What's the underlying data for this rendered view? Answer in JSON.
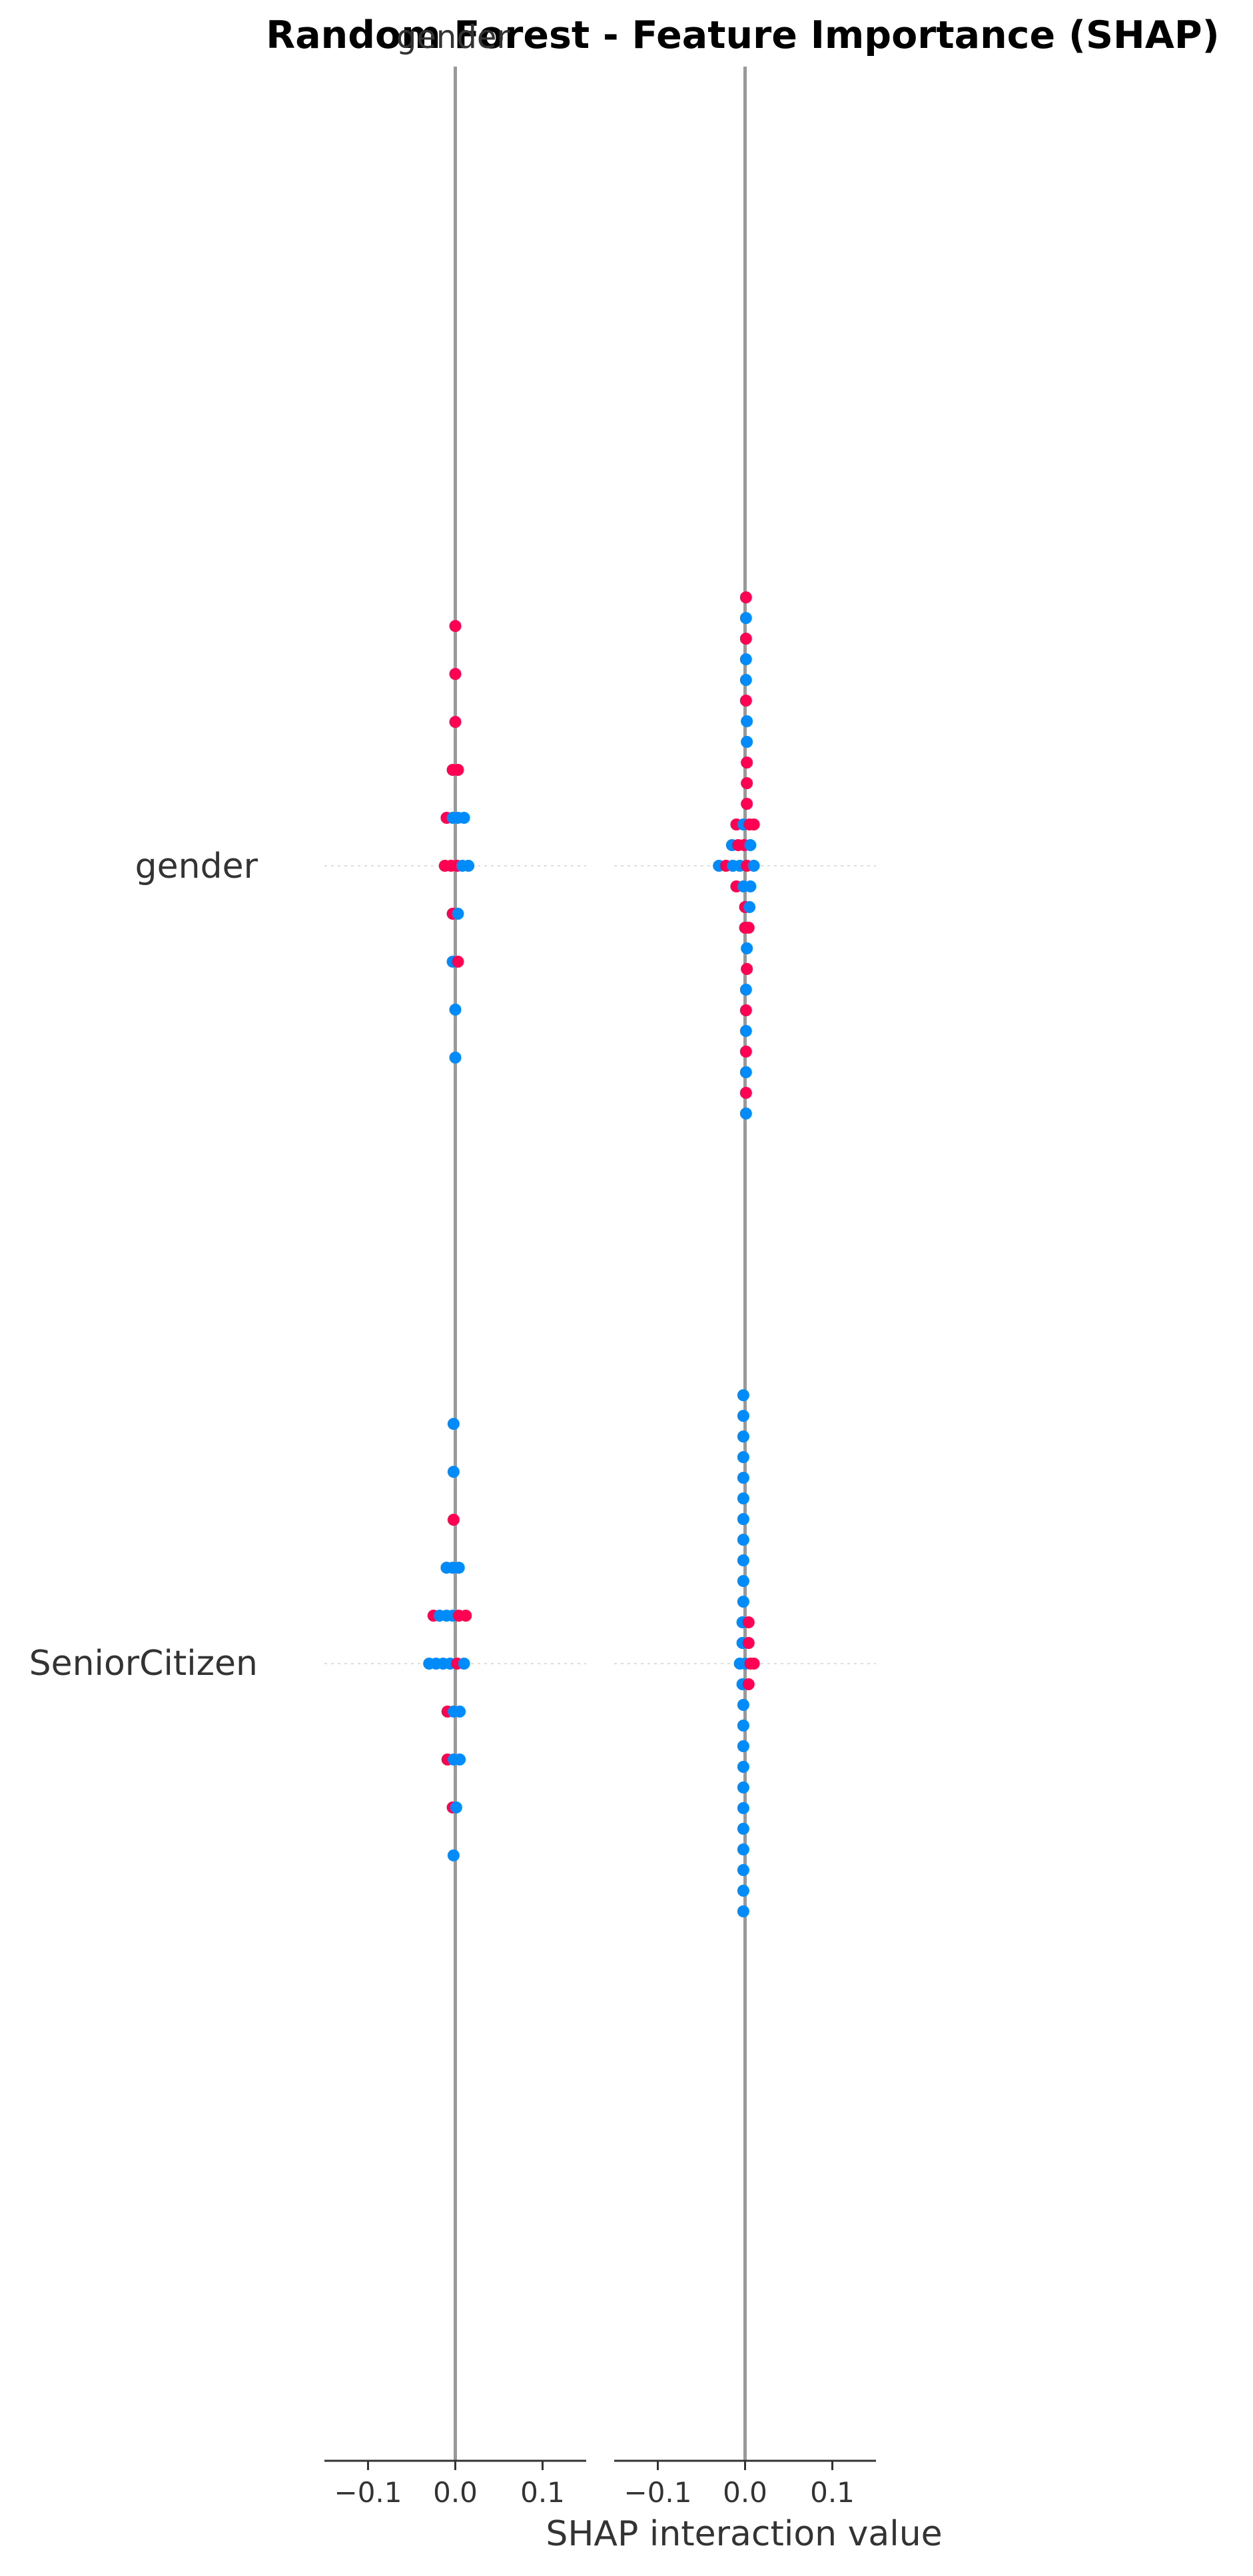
{
  "chart_data": {
    "type": "scatter",
    "title": "Random Forest - Feature Importance (SHAP)",
    "panel_titles": [
      "gender",
      ""
    ],
    "xlabel": "SHAP interaction value",
    "xlim": [
      -0.15,
      0.15
    ],
    "xticks": [
      -0.1,
      0.0,
      0.1
    ],
    "xtick_labels": [
      "−0.1",
      "0.0",
      "0.1"
    ],
    "features": [
      "gender",
      "SeniorCitizen"
    ],
    "colors": {
      "high": "#ff0052",
      "low": "#008bfb",
      "baseline": "#999999",
      "row_grid": "#dddddd"
    },
    "panels": [
      {
        "name": "gender",
        "rows": [
          {
            "feature": "gender",
            "points": [
              {
                "x": 0.0,
                "y": 5,
                "c": "high"
              },
              {
                "x": 0.0,
                "y": 4,
                "c": "high"
              },
              {
                "x": 0.0,
                "y": 3,
                "c": "high"
              },
              {
                "x": -0.003,
                "y": 2,
                "c": "high"
              },
              {
                "x": 0.003,
                "y": 2,
                "c": "high"
              },
              {
                "x": -0.01,
                "y": 1,
                "c": "high"
              },
              {
                "x": -0.003,
                "y": 1,
                "c": "low"
              },
              {
                "x": 0.003,
                "y": 1,
                "c": "low"
              },
              {
                "x": 0.01,
                "y": 1,
                "c": "low"
              },
              {
                "x": -0.012,
                "y": 0,
                "c": "high"
              },
              {
                "x": -0.005,
                "y": 0,
                "c": "high"
              },
              {
                "x": 0.002,
                "y": 0,
                "c": "high"
              },
              {
                "x": 0.008,
                "y": 0,
                "c": "low"
              },
              {
                "x": 0.015,
                "y": 0,
                "c": "low"
              },
              {
                "x": -0.003,
                "y": -1,
                "c": "high"
              },
              {
                "x": 0.003,
                "y": -1,
                "c": "low"
              },
              {
                "x": -0.003,
                "y": -2,
                "c": "low"
              },
              {
                "x": 0.003,
                "y": -2,
                "c": "high"
              },
              {
                "x": 0.0,
                "y": -3,
                "c": "low"
              },
              {
                "x": 0.0,
                "y": -4,
                "c": "low"
              }
            ]
          },
          {
            "feature": "SeniorCitizen",
            "points": [
              {
                "x": -0.002,
                "y": 5,
                "c": "low"
              },
              {
                "x": -0.002,
                "y": 4,
                "c": "low"
              },
              {
                "x": -0.002,
                "y": 3,
                "c": "high"
              },
              {
                "x": -0.01,
                "y": 2,
                "c": "low"
              },
              {
                "x": -0.003,
                "y": 2,
                "c": "low"
              },
              {
                "x": 0.004,
                "y": 2,
                "c": "low"
              },
              {
                "x": -0.025,
                "y": 1,
                "c": "high"
              },
              {
                "x": -0.018,
                "y": 1,
                "c": "low"
              },
              {
                "x": -0.01,
                "y": 1,
                "c": "low"
              },
              {
                "x": -0.003,
                "y": 1,
                "c": "low"
              },
              {
                "x": 0.004,
                "y": 1,
                "c": "high"
              },
              {
                "x": 0.012,
                "y": 1,
                "c": "high"
              },
              {
                "x": -0.03,
                "y": 0,
                "c": "low"
              },
              {
                "x": -0.022,
                "y": 0,
                "c": "low"
              },
              {
                "x": -0.014,
                "y": 0,
                "c": "low"
              },
              {
                "x": -0.006,
                "y": 0,
                "c": "low"
              },
              {
                "x": 0.002,
                "y": 0,
                "c": "high"
              },
              {
                "x": 0.01,
                "y": 0,
                "c": "low"
              },
              {
                "x": -0.009,
                "y": -1,
                "c": "high"
              },
              {
                "x": -0.002,
                "y": -1,
                "c": "low"
              },
              {
                "x": 0.005,
                "y": -1,
                "c": "low"
              },
              {
                "x": -0.009,
                "y": -2,
                "c": "high"
              },
              {
                "x": -0.002,
                "y": -2,
                "c": "low"
              },
              {
                "x": 0.005,
                "y": -2,
                "c": "low"
              },
              {
                "x": -0.003,
                "y": -3,
                "c": "high"
              },
              {
                "x": 0.001,
                "y": -3,
                "c": "low"
              },
              {
                "x": -0.002,
                "y": -4,
                "c": "low"
              }
            ]
          }
        ]
      },
      {
        "name": "",
        "rows": [
          {
            "feature": "gender",
            "points": [
              {
                "x": 0.001,
                "y": 13,
                "c": "high"
              },
              {
                "x": 0.001,
                "y": 12,
                "c": "low"
              },
              {
                "x": 0.001,
                "y": 11,
                "c": "high"
              },
              {
                "x": 0.001,
                "y": 10,
                "c": "low"
              },
              {
                "x": 0.001,
                "y": 9,
                "c": "low"
              },
              {
                "x": 0.001,
                "y": 8,
                "c": "high"
              },
              {
                "x": 0.002,
                "y": 7,
                "c": "low"
              },
              {
                "x": 0.002,
                "y": 6,
                "c": "low"
              },
              {
                "x": 0.002,
                "y": 5,
                "c": "high"
              },
              {
                "x": 0.002,
                "y": 4,
                "c": "high"
              },
              {
                "x": 0.002,
                "y": 3,
                "c": "high"
              },
              {
                "x": -0.01,
                "y": 2,
                "c": "high"
              },
              {
                "x": -0.002,
                "y": 2,
                "c": "low"
              },
              {
                "x": 0.005,
                "y": 2,
                "c": "high"
              },
              {
                "x": 0.01,
                "y": 2,
                "c": "high"
              },
              {
                "x": -0.015,
                "y": 1,
                "c": "low"
              },
              {
                "x": -0.008,
                "y": 1,
                "c": "high"
              },
              {
                "x": -0.001,
                "y": 1,
                "c": "high"
              },
              {
                "x": 0.006,
                "y": 1,
                "c": "low"
              },
              {
                "x": -0.03,
                "y": 0,
                "c": "low"
              },
              {
                "x": -0.022,
                "y": 0,
                "c": "high"
              },
              {
                "x": -0.014,
                "y": 0,
                "c": "low"
              },
              {
                "x": -0.006,
                "y": 0,
                "c": "low"
              },
              {
                "x": 0.002,
                "y": 0,
                "c": "high"
              },
              {
                "x": 0.01,
                "y": 0,
                "c": "low"
              },
              {
                "x": -0.01,
                "y": -1,
                "c": "high"
              },
              {
                "x": -0.002,
                "y": -1,
                "c": "low"
              },
              {
                "x": 0.006,
                "y": -1,
                "c": "low"
              },
              {
                "x": 0.0,
                "y": -2,
                "c": "high"
              },
              {
                "x": 0.005,
                "y": -2,
                "c": "low"
              },
              {
                "x": 0.0,
                "y": -3,
                "c": "high"
              },
              {
                "x": 0.004,
                "y": -3,
                "c": "high"
              },
              {
                "x": 0.002,
                "y": -4,
                "c": "low"
              },
              {
                "x": 0.002,
                "y": -5,
                "c": "high"
              },
              {
                "x": 0.001,
                "y": -6,
                "c": "low"
              },
              {
                "x": 0.001,
                "y": -7,
                "c": "high"
              },
              {
                "x": 0.001,
                "y": -8,
                "c": "low"
              },
              {
                "x": 0.001,
                "y": -9,
                "c": "high"
              },
              {
                "x": 0.001,
                "y": -10,
                "c": "low"
              },
              {
                "x": 0.001,
                "y": -11,
                "c": "high"
              },
              {
                "x": 0.001,
                "y": -12,
                "c": "low"
              }
            ]
          },
          {
            "feature": "SeniorCitizen",
            "points": [
              {
                "x": -0.002,
                "y": 13,
                "c": "low"
              },
              {
                "x": -0.002,
                "y": 12,
                "c": "low"
              },
              {
                "x": -0.002,
                "y": 11,
                "c": "low"
              },
              {
                "x": -0.002,
                "y": 10,
                "c": "low"
              },
              {
                "x": -0.002,
                "y": 9,
                "c": "low"
              },
              {
                "x": -0.002,
                "y": 8,
                "c": "low"
              },
              {
                "x": -0.002,
                "y": 7,
                "c": "low"
              },
              {
                "x": -0.002,
                "y": 6,
                "c": "low"
              },
              {
                "x": -0.002,
                "y": 5,
                "c": "low"
              },
              {
                "x": -0.002,
                "y": 4,
                "c": "low"
              },
              {
                "x": -0.002,
                "y": 3,
                "c": "low"
              },
              {
                "x": -0.003,
                "y": 2,
                "c": "low"
              },
              {
                "x": 0.004,
                "y": 2,
                "c": "high"
              },
              {
                "x": -0.003,
                "y": 1,
                "c": "low"
              },
              {
                "x": 0.004,
                "y": 1,
                "c": "high"
              },
              {
                "x": -0.006,
                "y": 0,
                "c": "low"
              },
              {
                "x": 0.0,
                "y": 0,
                "c": "low"
              },
              {
                "x": 0.006,
                "y": 0,
                "c": "high"
              },
              {
                "x": 0.01,
                "y": 0,
                "c": "high"
              },
              {
                "x": -0.003,
                "y": -1,
                "c": "low"
              },
              {
                "x": 0.004,
                "y": -1,
                "c": "high"
              },
              {
                "x": -0.002,
                "y": -2,
                "c": "low"
              },
              {
                "x": -0.002,
                "y": -3,
                "c": "low"
              },
              {
                "x": -0.002,
                "y": -4,
                "c": "low"
              },
              {
                "x": -0.002,
                "y": -5,
                "c": "low"
              },
              {
                "x": -0.002,
                "y": -6,
                "c": "low"
              },
              {
                "x": -0.002,
                "y": -7,
                "c": "low"
              },
              {
                "x": -0.002,
                "y": -8,
                "c": "low"
              },
              {
                "x": -0.002,
                "y": -9,
                "c": "low"
              },
              {
                "x": -0.002,
                "y": -10,
                "c": "low"
              },
              {
                "x": -0.002,
                "y": -11,
                "c": "low"
              },
              {
                "x": -0.002,
                "y": -12,
                "c": "low"
              }
            ]
          }
        ]
      }
    ]
  }
}
